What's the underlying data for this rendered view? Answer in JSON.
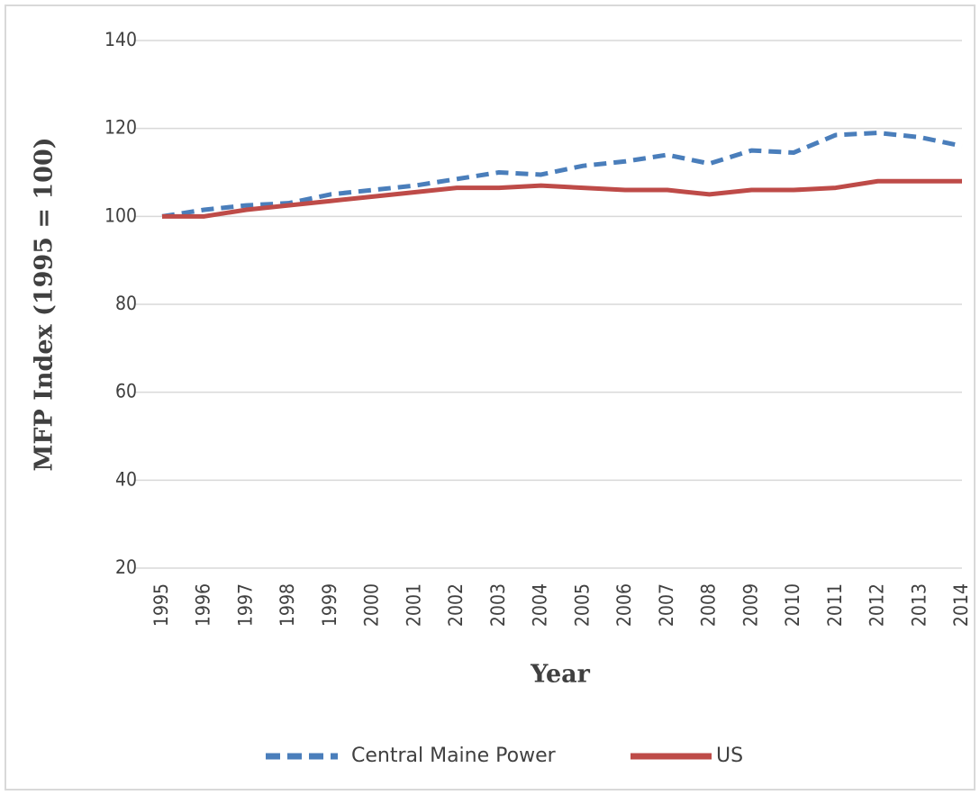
{
  "chart_data": {
    "type": "line",
    "y_label": "MFP Index (1995 = 100)",
    "x_label": "Year",
    "x": [
      1995,
      1996,
      1997,
      1998,
      1999,
      2000,
      2001,
      2002,
      2003,
      2004,
      2005,
      2006,
      2007,
      2008,
      2009,
      2010,
      2011,
      2012,
      2013,
      2014
    ],
    "xlim": [
      1995,
      2014
    ],
    "xticks": [
      1995,
      1996,
      1997,
      1998,
      1999,
      2000,
      2001,
      2002,
      2003,
      2004,
      2005,
      2006,
      2007,
      2008,
      2009,
      2010,
      2011,
      2012,
      2013,
      2014
    ],
    "ylim": [
      20,
      140
    ],
    "yticks": [
      20,
      40,
      60,
      80,
      100,
      120,
      140
    ],
    "grid": true,
    "legend": "bottom",
    "series": [
      {
        "name": "Central Maine Power",
        "color": "#4a7ebb",
        "dashed": true,
        "values": [
          100,
          101.5,
          102.5,
          103,
          105,
          106,
          107,
          108.5,
          110,
          109.5,
          111.5,
          112.5,
          114,
          112,
          115,
          114.5,
          118.5,
          119,
          118,
          116
        ]
      },
      {
        "name": "US",
        "color": "#be4b48",
        "dashed": false,
        "values": [
          100,
          100,
          101.5,
          102.5,
          103.5,
          104.5,
          105.5,
          106.5,
          106.5,
          107,
          106.5,
          106,
          106,
          105,
          106,
          106,
          106.5,
          108,
          108,
          108
        ]
      }
    ]
  }
}
